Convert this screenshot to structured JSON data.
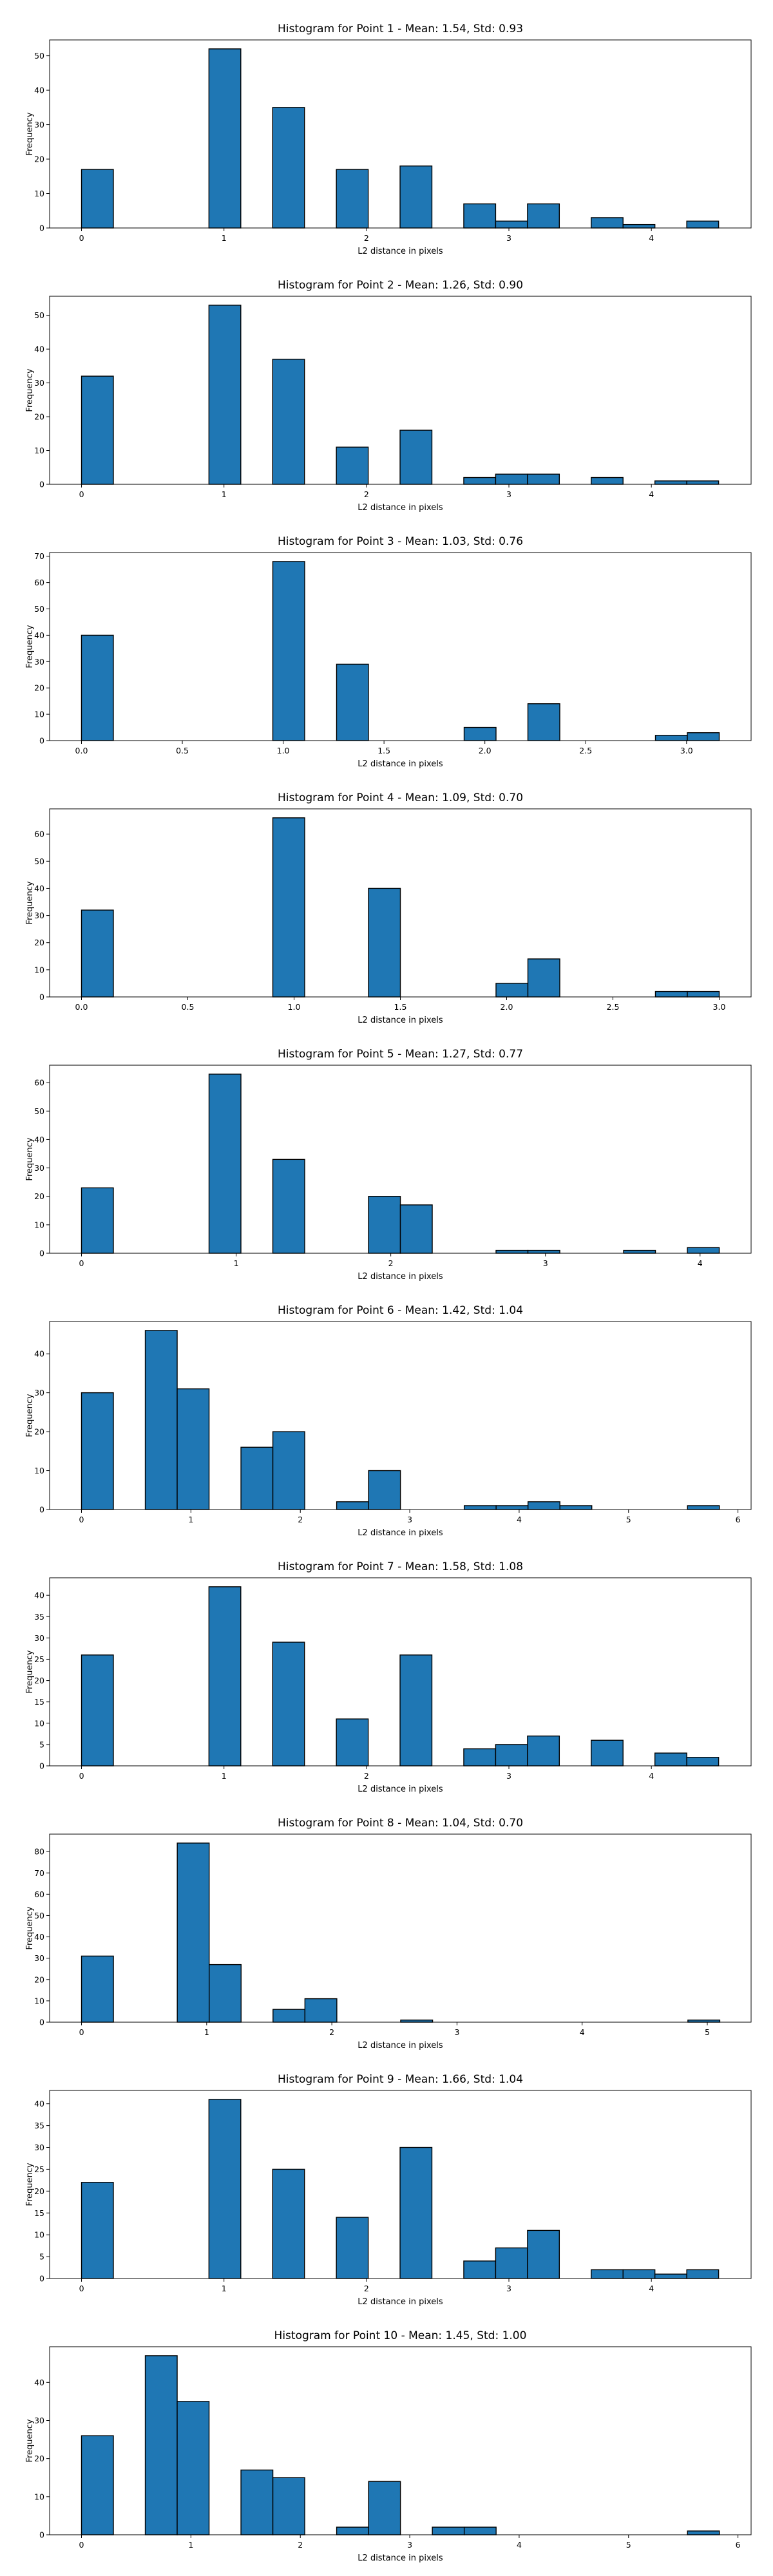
{
  "chart_data": [
    {
      "type": "bar",
      "title": "Histogram for Point 1 - Mean: 1.54, Std: 0.93",
      "xlabel": "L2 distance in pixels",
      "ylabel": "Frequency",
      "xlim": [
        -0.224,
        4.7
      ],
      "ylim": [
        0,
        54.6
      ],
      "xticks": [
        0,
        1,
        2,
        3,
        4
      ],
      "xtick_labels": [
        "0",
        "1",
        "2",
        "3",
        "4"
      ],
      "yticks": [
        0,
        10,
        20,
        30,
        40,
        50
      ],
      "bin_edges": [
        0,
        0.2236,
        0.4472,
        0.6708,
        0.8944,
        1.118,
        1.3416,
        1.5652,
        1.7888,
        2.0124,
        2.236,
        2.4596,
        2.6832,
        2.9068,
        3.1304,
        3.354,
        3.5776,
        3.8012,
        4.0248,
        4.2484,
        4.472
      ],
      "values": [
        17,
        0,
        0,
        0,
        52,
        0,
        35,
        0,
        17,
        0,
        18,
        0,
        7,
        2,
        7,
        0,
        3,
        1,
        0,
        2
      ]
    },
    {
      "type": "bar",
      "title": "Histogram for Point 2 - Mean: 1.26, Std: 0.90",
      "xlabel": "L2 distance in pixels",
      "ylabel": "Frequency",
      "xlim": [
        -0.224,
        4.7
      ],
      "ylim": [
        0,
        55.65
      ],
      "xticks": [
        0,
        1,
        2,
        3,
        4
      ],
      "xtick_labels": [
        "0",
        "1",
        "2",
        "3",
        "4"
      ],
      "yticks": [
        0,
        10,
        20,
        30,
        40,
        50
      ],
      "bin_edges": [
        0,
        0.2236,
        0.4472,
        0.6708,
        0.8944,
        1.118,
        1.3416,
        1.5652,
        1.7888,
        2.0124,
        2.236,
        2.4596,
        2.6832,
        2.9068,
        3.1304,
        3.354,
        3.5776,
        3.8012,
        4.0248,
        4.2484,
        4.472
      ],
      "values": [
        32,
        0,
        0,
        0,
        53,
        0,
        37,
        0,
        11,
        0,
        16,
        0,
        2,
        3,
        3,
        0,
        2,
        0,
        1,
        1
      ]
    },
    {
      "type": "bar",
      "title": "Histogram for Point 3 - Mean: 1.03, Std: 0.76",
      "xlabel": "L2 distance in pixels",
      "ylabel": "Frequency",
      "xlim": [
        -0.158,
        3.32
      ],
      "ylim": [
        0,
        71.4
      ],
      "xticks": [
        0,
        0.5,
        1,
        1.5,
        2,
        2.5,
        3
      ],
      "xtick_labels": [
        "0.0",
        "0.5",
        "1.0",
        "1.5",
        "2.0",
        "2.5",
        "3.0"
      ],
      "yticks": [
        0,
        10,
        20,
        30,
        40,
        50,
        60,
        70
      ],
      "bin_edges": [
        0,
        0.1581,
        0.3162,
        0.4743,
        0.6324,
        0.7905,
        0.9486,
        1.1067,
        1.2648,
        1.4229,
        1.581,
        1.7391,
        1.8972,
        2.0553,
        2.2134,
        2.3715,
        2.5296,
        2.6877,
        2.8458,
        3.0039,
        3.162
      ],
      "values": [
        40,
        0,
        0,
        0,
        0,
        0,
        68,
        0,
        29,
        0,
        0,
        0,
        5,
        0,
        14,
        0,
        0,
        0,
        2,
        3
      ]
    },
    {
      "type": "bar",
      "title": "Histogram for Point 4 - Mean: 1.09, Std: 0.70",
      "xlabel": "L2 distance in pixels",
      "ylabel": "Frequency",
      "xlim": [
        -0.15,
        3.15
      ],
      "ylim": [
        0,
        69.3
      ],
      "xticks": [
        0,
        0.5,
        1,
        1.5,
        2,
        2.5,
        3
      ],
      "xtick_labels": [
        "0.0",
        "0.5",
        "1.0",
        "1.5",
        "2.0",
        "2.5",
        "3.0"
      ],
      "yticks": [
        0,
        10,
        20,
        30,
        40,
        50,
        60
      ],
      "bin_edges": [
        0,
        0.15,
        0.3,
        0.45,
        0.6,
        0.75,
        0.9,
        1.05,
        1.2,
        1.35,
        1.5,
        1.65,
        1.8,
        1.95,
        2.1,
        2.25,
        2.4,
        2.55,
        2.7,
        2.85,
        3.0
      ],
      "values": [
        32,
        0,
        0,
        0,
        0,
        0,
        66,
        0,
        0,
        40,
        0,
        0,
        0,
        5,
        14,
        0,
        0,
        0,
        2,
        2
      ]
    },
    {
      "type": "bar",
      "title": "Histogram for Point 5 - Mean: 1.27, Std: 0.77",
      "xlabel": "L2 distance in pixels",
      "ylabel": "Frequency",
      "xlim": [
        -0.2062,
        4.33
      ],
      "ylim": [
        0,
        66.15
      ],
      "xticks": [
        0,
        1,
        2,
        3,
        4
      ],
      "xtick_labels": [
        "0",
        "1",
        "2",
        "3",
        "4"
      ],
      "yticks": [
        0,
        10,
        20,
        30,
        40,
        50,
        60
      ],
      "bin_edges": [
        0,
        0.2062,
        0.4124,
        0.6186,
        0.8248,
        1.031,
        1.2372,
        1.4434,
        1.6496,
        1.8558,
        2.062,
        2.2682,
        2.4744,
        2.6806,
        2.8868,
        3.093,
        3.2992,
        3.5054,
        3.7116,
        3.9178,
        4.124
      ],
      "values": [
        23,
        0,
        0,
        0,
        63,
        0,
        33,
        0,
        0,
        20,
        17,
        0,
        0,
        1,
        1,
        0,
        0,
        1,
        0,
        2
      ]
    },
    {
      "type": "bar",
      "title": "Histogram for Point 6 - Mean: 1.42, Std: 1.04",
      "xlabel": "L2 distance in pixels",
      "ylabel": "Frequency",
      "xlim": [
        -0.2915,
        6.12
      ],
      "ylim": [
        0,
        48.3
      ],
      "xticks": [
        0,
        1,
        2,
        3,
        4,
        5,
        6
      ],
      "xtick_labels": [
        "0",
        "1",
        "2",
        "3",
        "4",
        "5",
        "6"
      ],
      "yticks": [
        0,
        10,
        20,
        30,
        40
      ],
      "bin_edges": [
        0,
        0.2915,
        0.583,
        0.8745,
        1.166,
        1.4575,
        1.749,
        2.0405,
        2.332,
        2.6235,
        2.915,
        3.2065,
        3.498,
        3.7895,
        4.081,
        4.3725,
        4.664,
        4.9555,
        5.247,
        5.5385,
        5.83
      ],
      "values": [
        30,
        0,
        46,
        31,
        0,
        16,
        20,
        0,
        2,
        10,
        0,
        0,
        1,
        1,
        2,
        1,
        0,
        0,
        0,
        1
      ]
    },
    {
      "type": "bar",
      "title": "Histogram for Point 7 - Mean: 1.58, Std: 1.08",
      "xlabel": "L2 distance in pixels",
      "ylabel": "Frequency",
      "xlim": [
        -0.224,
        4.7
      ],
      "ylim": [
        0,
        44.1
      ],
      "xticks": [
        0,
        1,
        2,
        3,
        4
      ],
      "xtick_labels": [
        "0",
        "1",
        "2",
        "3",
        "4"
      ],
      "yticks": [
        0,
        5,
        10,
        15,
        20,
        25,
        30,
        35,
        40
      ],
      "bin_edges": [
        0,
        0.2236,
        0.4472,
        0.6708,
        0.8944,
        1.118,
        1.3416,
        1.5652,
        1.7888,
        2.0124,
        2.236,
        2.4596,
        2.6832,
        2.9068,
        3.1304,
        3.354,
        3.5776,
        3.8012,
        4.0248,
        4.2484,
        4.472
      ],
      "values": [
        26,
        0,
        0,
        0,
        42,
        0,
        29,
        0,
        11,
        0,
        26,
        0,
        4,
        5,
        7,
        0,
        6,
        0,
        3,
        2
      ]
    },
    {
      "type": "bar",
      "title": "Histogram for Point 8 - Mean: 1.04, Std: 0.70",
      "xlabel": "L2 distance in pixels",
      "ylabel": "Frequency",
      "xlim": [
        -0.255,
        5.35
      ],
      "ylim": [
        0,
        88.2
      ],
      "xticks": [
        0,
        1,
        2,
        3,
        4,
        5
      ],
      "xtick_labels": [
        "0",
        "1",
        "2",
        "3",
        "4",
        "5"
      ],
      "yticks": [
        0,
        10,
        20,
        30,
        40,
        50,
        60,
        70,
        80
      ],
      "bin_edges": [
        0,
        0.255,
        0.51,
        0.765,
        1.02,
        1.275,
        1.53,
        1.785,
        2.04,
        2.295,
        2.55,
        2.805,
        3.06,
        3.315,
        3.57,
        3.825,
        4.08,
        4.335,
        4.59,
        4.845,
        5.1
      ],
      "values": [
        31,
        0,
        0,
        84,
        27,
        0,
        6,
        11,
        0,
        0,
        1,
        0,
        0,
        0,
        0,
        0,
        0,
        0,
        0,
        1
      ]
    },
    {
      "type": "bar",
      "title": "Histogram for Point 9 - Mean: 1.66, Std: 1.04",
      "xlabel": "L2 distance in pixels",
      "ylabel": "Frequency",
      "xlim": [
        -0.224,
        4.7
      ],
      "ylim": [
        0,
        43.05
      ],
      "xticks": [
        0,
        1,
        2,
        3,
        4
      ],
      "xtick_labels": [
        "0",
        "1",
        "2",
        "3",
        "4"
      ],
      "yticks": [
        0,
        5,
        10,
        15,
        20,
        25,
        30,
        35,
        40
      ],
      "bin_edges": [
        0,
        0.2236,
        0.4472,
        0.6708,
        0.8944,
        1.118,
        1.3416,
        1.5652,
        1.7888,
        2.0124,
        2.236,
        2.4596,
        2.6832,
        2.9068,
        3.1304,
        3.354,
        3.5776,
        3.8012,
        4.0248,
        4.2484,
        4.472
      ],
      "values": [
        22,
        0,
        0,
        0,
        41,
        0,
        25,
        0,
        14,
        0,
        30,
        0,
        4,
        7,
        11,
        0,
        2,
        2,
        1,
        2
      ]
    },
    {
      "type": "bar",
      "title": "Histogram for Point 10 - Mean: 1.45, Std: 1.00",
      "xlabel": "L2 distance in pixels",
      "ylabel": "Frequency",
      "xlim": [
        -0.2915,
        6.12
      ],
      "ylim": [
        0,
        49.35
      ],
      "xticks": [
        0,
        1,
        2,
        3,
        4,
        5,
        6
      ],
      "xtick_labels": [
        "0",
        "1",
        "2",
        "3",
        "4",
        "5",
        "6"
      ],
      "yticks": [
        0,
        10,
        20,
        30,
        40
      ],
      "bin_edges": [
        0,
        0.2915,
        0.583,
        0.8745,
        1.166,
        1.4575,
        1.749,
        2.0405,
        2.332,
        2.6235,
        2.915,
        3.2065,
        3.498,
        3.7895,
        4.081,
        4.3725,
        4.664,
        4.9555,
        5.247,
        5.5385,
        5.83
      ],
      "values": [
        26,
        0,
        47,
        35,
        0,
        17,
        15,
        0,
        2,
        14,
        0,
        2,
        2,
        0,
        0,
        0,
        0,
        0,
        0,
        1
      ]
    }
  ],
  "style": {
    "bar_color": "#1f77b4",
    "edge_color": "#000000"
  }
}
